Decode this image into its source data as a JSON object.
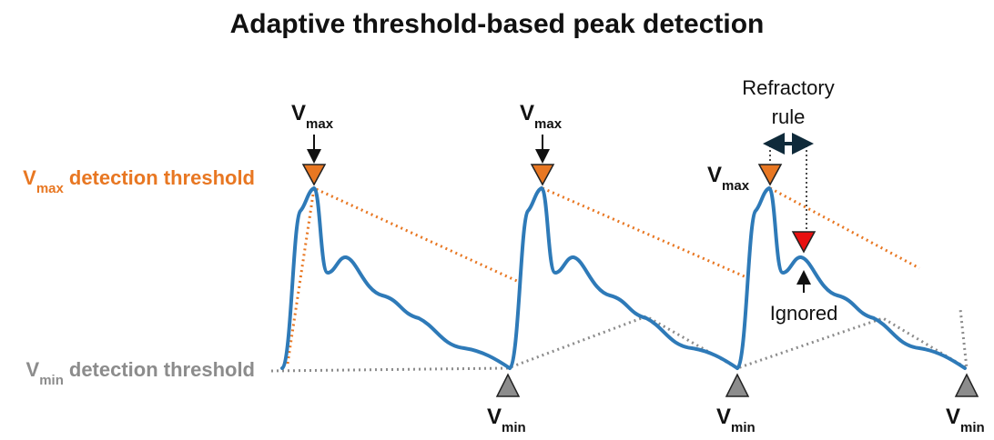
{
  "title": "Adaptive threshold-based peak detection",
  "thresholds": [
    {
      "symbol": "V",
      "subscript": "max",
      "text": "detection threshold"
    },
    {
      "symbol": "V",
      "subscript": "min",
      "text": "detection threshold"
    }
  ],
  "peak_labels": [
    {
      "symbol": "V",
      "subscript": "max"
    },
    {
      "symbol": "V",
      "subscript": "max"
    },
    {
      "symbol": "V",
      "subscript": "max"
    }
  ],
  "trough_labels": [
    {
      "symbol": "V",
      "subscript": "min"
    },
    {
      "symbol": "V",
      "subscript": "min"
    },
    {
      "symbol": "V",
      "subscript": "min"
    }
  ],
  "annotations": {
    "refractory": [
      "Refractory",
      "rule"
    ],
    "ignored": "Ignored"
  }
}
